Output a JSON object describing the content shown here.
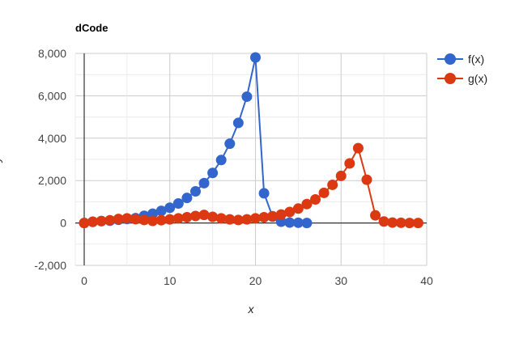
{
  "chart_data": {
    "type": "line",
    "title": "dCode",
    "xlabel": "x",
    "ylabel": "y",
    "xlim": [
      -1,
      40
    ],
    "ylim": [
      -2000,
      8000
    ],
    "x_ticks": [
      0,
      10,
      20,
      30,
      40
    ],
    "x_tick_labels": [
      "0",
      "10",
      "20",
      "30",
      "40"
    ],
    "y_ticks": [
      -2000,
      0,
      2000,
      4000,
      6000,
      8000
    ],
    "y_tick_labels": [
      "-2,000",
      "0",
      "2,000",
      "4,000",
      "6,000",
      "8,000"
    ],
    "grid": true,
    "legend_position": "right-top",
    "series": [
      {
        "name": "f(x)",
        "color": "#3366cc",
        "x": [
          0,
          1,
          2,
          3,
          4,
          5,
          6,
          7,
          8,
          9,
          10,
          11,
          12,
          13,
          14,
          15,
          16,
          17,
          18,
          19,
          20,
          21,
          22,
          23,
          24,
          25,
          26
        ],
        "y": [
          0,
          60,
          90,
          110,
          150,
          190,
          230,
          340,
          440,
          570,
          720,
          920,
          1180,
          1490,
          1880,
          2360,
          2970,
          3740,
          4720,
          5960,
          7810,
          1400,
          300,
          60,
          20,
          10,
          0
        ]
      },
      {
        "name": "g(x)",
        "color": "#dc3912",
        "x": [
          0,
          1,
          2,
          3,
          4,
          5,
          6,
          7,
          8,
          9,
          10,
          11,
          12,
          13,
          14,
          15,
          16,
          17,
          18,
          19,
          20,
          21,
          22,
          23,
          24,
          25,
          26,
          27,
          28,
          29,
          30,
          31,
          32,
          33,
          34,
          35,
          36,
          37,
          38,
          39
        ],
        "y": [
          0,
          50,
          90,
          130,
          190,
          220,
          180,
          140,
          100,
          130,
          170,
          220,
          270,
          330,
          380,
          290,
          220,
          170,
          140,
          170,
          220,
          270,
          320,
          400,
          520,
          680,
          890,
          1110,
          1420,
          1800,
          2220,
          2810,
          3530,
          2040,
          360,
          70,
          20,
          10,
          0,
          0
        ]
      }
    ]
  }
}
